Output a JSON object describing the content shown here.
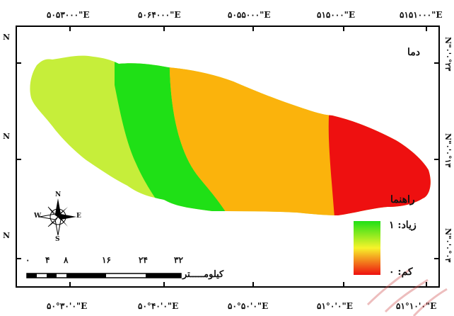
{
  "top_coords": [
    "۵۰۵۳۰۰۰\"E",
    "۵۰۶۴۰۰۰\"E",
    "۵۰۵۵۰۰۰\"E",
    "۵۱۵۰۰۰\"E",
    "۵۱۵۱۰۰۰\"E"
  ],
  "bottom_coords": [
    "۵۰°۳۰'۰\"E",
    "۵۰°۴۰'۰\"E",
    "۵۰°۵۰'۰\"E",
    "۵۱°۰'۰\"E",
    "۵۱°۱۰'۰\"E"
  ],
  "left_coords": [
    "N",
    "N",
    "N"
  ],
  "right_coords": [
    "N\"۰'۰°۲۳",
    "N\"۰'۰°۱۳",
    "N\"۰'۰°۰۳"
  ],
  "map": {
    "title": "دما",
    "zones": [
      {
        "name": "zone-1",
        "color": "#c6ee3a"
      },
      {
        "name": "zone-2",
        "color": "#1fe016"
      },
      {
        "name": "zone-3",
        "color": "#fbb30c"
      },
      {
        "name": "zone-4",
        "color": "#ee1010"
      }
    ]
  },
  "legend": {
    "title": "راهنما",
    "high_label": "زیاد: ۱",
    "low_label": "کم: ۰",
    "gradient_colors": [
      "#1fe016",
      "#f7f32a",
      "#ee1010"
    ]
  },
  "north_arrow": {
    "n": "N",
    "s": "S",
    "e": "E",
    "w": "W"
  },
  "scale_bar": {
    "ticks": [
      "۰",
      "۴",
      "۸",
      "۱۶",
      "۲۴",
      "۳۲"
    ],
    "unit": "کیلومـــــتر"
  }
}
